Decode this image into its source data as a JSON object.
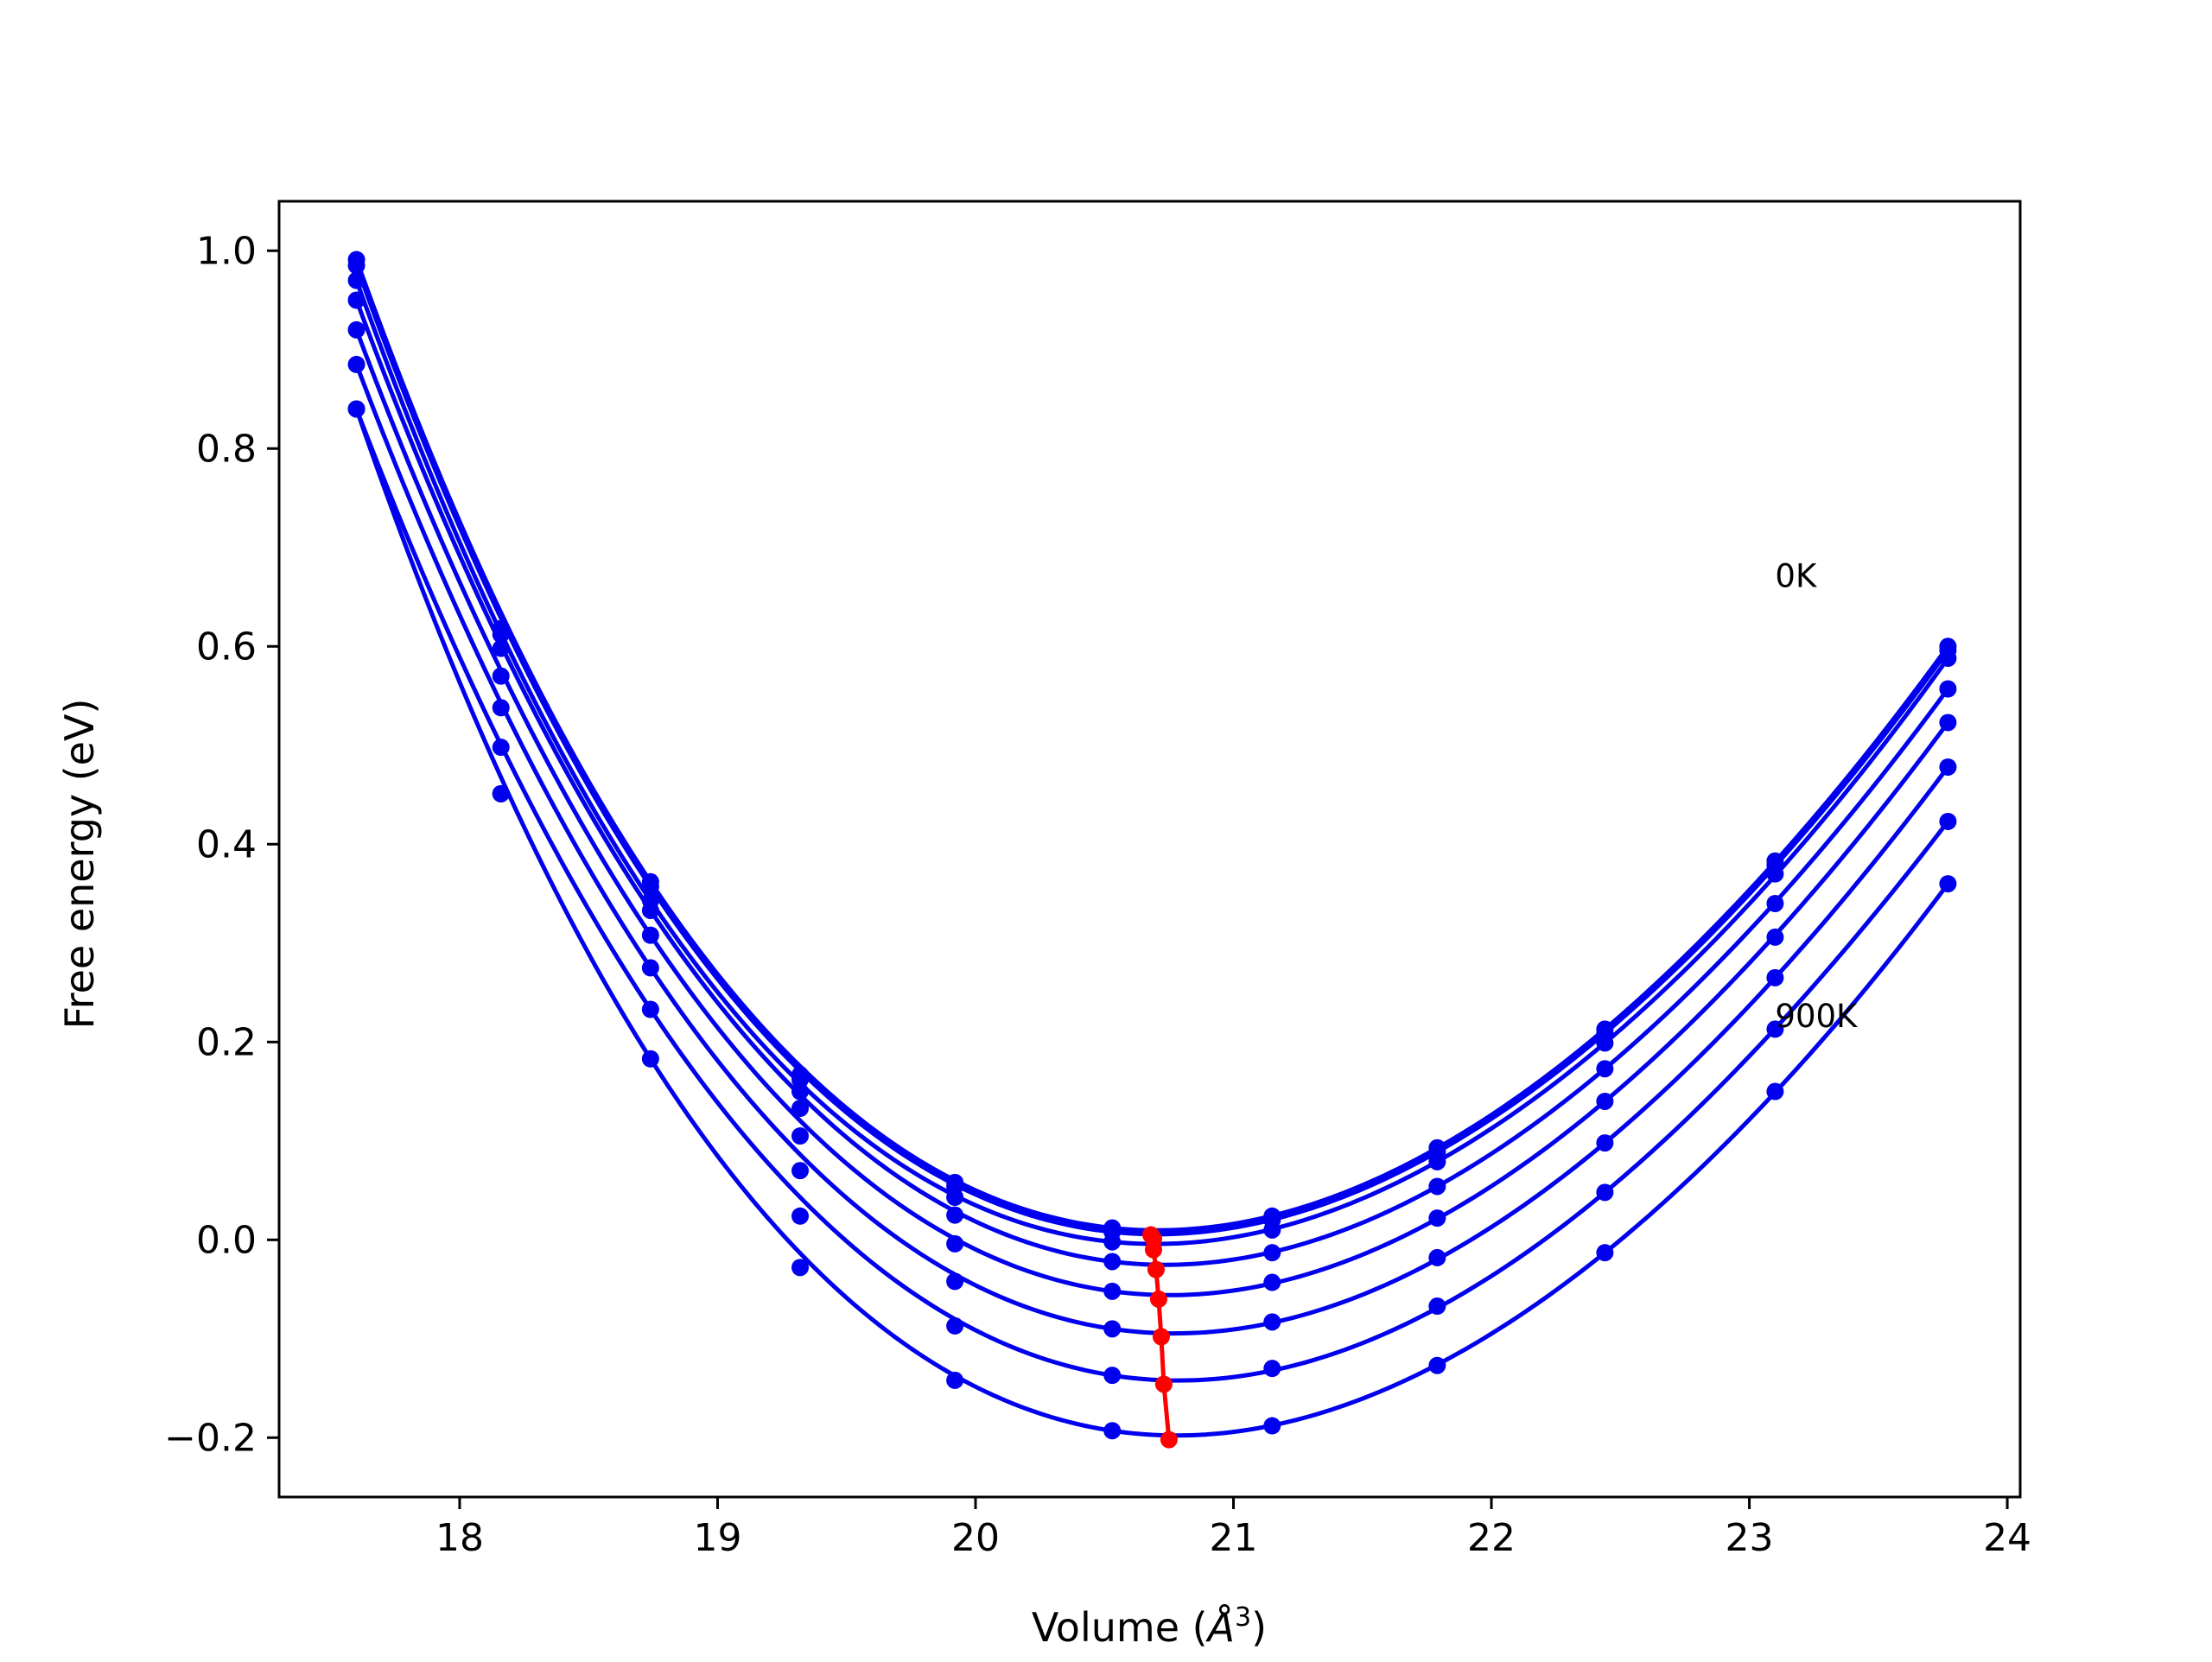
{
  "chart_data": {
    "type": "line",
    "title": "",
    "xlabel": "Volume (",
    "xlabel_unit": "Å",
    "xlabel_sup": "3",
    "xlabel_close": ")",
    "ylabel": "Free energy (eV)",
    "xlim": [
      17.3,
      24.05
    ],
    "ylim": [
      -0.26,
      1.05
    ],
    "xticks": [
      18,
      19,
      20,
      21,
      22,
      23,
      24
    ],
    "xtick_labels": [
      "18",
      "19",
      "20",
      "21",
      "22",
      "23",
      "24"
    ],
    "yticks": [
      -0.2,
      0.0,
      0.2,
      0.4,
      0.6,
      0.8,
      1.0
    ],
    "ytick_labels": [
      "−0.2",
      "0.0",
      "0.2",
      "0.4",
      "0.6",
      "0.8",
      "1.0"
    ],
    "grid": false,
    "legend": "none",
    "sample_volumes": [
      17.6,
      18.16,
      18.74,
      19.32,
      19.92,
      20.53,
      21.15,
      21.79,
      22.44,
      23.1,
      23.77
    ],
    "series": [
      {
        "temperature_index": 0,
        "values": [
          0.991,
          0.618,
          0.362,
          0.167,
          0.058,
          0.012,
          0.024,
          0.093,
          0.213,
          0.383,
          0.6
        ],
        "minimum": [
          20.68,
          0.005
        ]
      },
      {
        "temperature_index": 1,
        "values": [
          0.985,
          0.612,
          0.357,
          0.162,
          0.054,
          0.008,
          0.02,
          0.089,
          0.209,
          0.379,
          0.596
        ],
        "minimum": [
          20.69,
          0.001
        ]
      },
      {
        "temperature_index": 2,
        "values": [
          0.97,
          0.598,
          0.343,
          0.15,
          0.043,
          -0.002,
          0.01,
          0.079,
          0.199,
          0.37,
          0.588
        ],
        "minimum": [
          20.69,
          -0.01
        ]
      },
      {
        "temperature_index": 3,
        "values": [
          0.95,
          0.57,
          0.333,
          0.133,
          0.025,
          -0.022,
          -0.013,
          0.054,
          0.173,
          0.34,
          0.557
        ],
        "minimum": [
          20.7,
          -0.03
        ]
      },
      {
        "temperature_index": 4,
        "values": [
          0.92,
          0.538,
          0.308,
          0.105,
          -0.004,
          -0.052,
          -0.043,
          0.022,
          0.14,
          0.306,
          0.523
        ],
        "minimum": [
          20.71,
          -0.06
        ]
      },
      {
        "temperature_index": 5,
        "values": [
          0.885,
          0.498,
          0.275,
          0.07,
          -0.042,
          -0.09,
          -0.083,
          -0.018,
          0.098,
          0.265,
          0.478
        ],
        "minimum": [
          20.72,
          -0.098
        ]
      },
      {
        "temperature_index": 6,
        "values": [
          0.84,
          0.451,
          0.233,
          0.024,
          -0.087,
          -0.137,
          -0.13,
          -0.067,
          0.048,
          0.213,
          0.423
        ],
        "minimum": [
          20.73,
          -0.146
        ]
      },
      {
        "temperature_index": 7,
        "values": [
          0.84,
          0.451,
          0.183,
          -0.028,
          -0.142,
          -0.193,
          -0.188,
          -0.127,
          -0.013,
          0.15,
          0.36
        ],
        "minimum": [
          20.75,
          -0.202
        ]
      }
    ],
    "annotations": [
      {
        "text": "0K",
        "x": 23.1,
        "y": 0.66
      },
      {
        "text": "900K",
        "x": 23.1,
        "y": 0.215
      }
    ],
    "colors": {
      "curves": "#0000ee",
      "minimum_line": "#ff0000",
      "axes": "#000000"
    }
  }
}
